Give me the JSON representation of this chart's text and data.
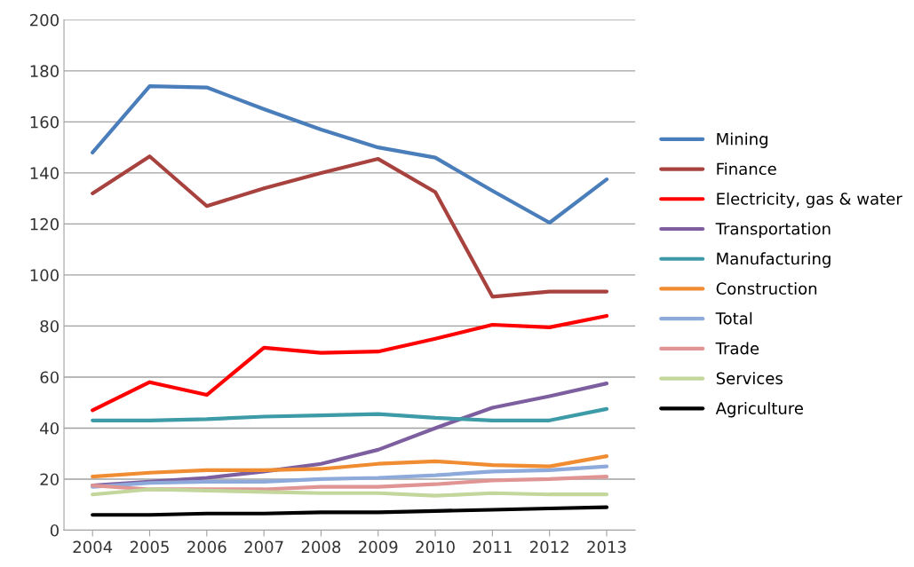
{
  "chart_data": {
    "type": "line",
    "categories": [
      "2004",
      "2005",
      "2006",
      "2007",
      "2008",
      "2009",
      "2010",
      "2011",
      "2012",
      "2013"
    ],
    "ylim": [
      0,
      200
    ],
    "yticks": [
      0,
      20,
      40,
      60,
      80,
      100,
      120,
      140,
      160,
      180,
      200
    ],
    "grid": "y",
    "legend": "right",
    "series": [
      {
        "name": "Mining",
        "color": "#4a7ebb",
        "values": [
          148,
          174,
          173.5,
          165,
          157,
          150,
          146,
          133,
          120.5,
          137.5
        ]
      },
      {
        "name": "Finance",
        "color": "#a8423f",
        "values": [
          132,
          146.5,
          127,
          134,
          140,
          145.5,
          132.5,
          91.5,
          93.5,
          93.5
        ]
      },
      {
        "name": "Electricity, gas & water",
        "color": "#ff0000",
        "values": [
          47,
          58,
          53,
          71.5,
          69.5,
          70,
          75,
          80.5,
          79.5,
          84
        ]
      },
      {
        "name": "Transportation",
        "color": "#7d5fa0",
        "values": [
          17.5,
          19,
          20.5,
          23,
          26,
          31.5,
          40,
          48,
          52.5,
          57.5
        ]
      },
      {
        "name": "Manufacturing",
        "color": "#3d9ba8",
        "values": [
          43,
          43,
          43.5,
          44.5,
          45,
          45.5,
          44,
          43,
          43,
          47.5
        ]
      },
      {
        "name": "Construction",
        "color": "#f08c32",
        "values": [
          21,
          22.5,
          23.5,
          23.5,
          24,
          26,
          27,
          25.5,
          25,
          29
        ]
      },
      {
        "name": "Total",
        "color": "#8eaadb",
        "values": [
          17,
          18.5,
          19,
          19,
          20,
          20.5,
          21.5,
          23,
          23.5,
          25
        ]
      },
      {
        "name": "Trade",
        "color": "#e19494",
        "values": [
          17.5,
          16,
          16,
          16,
          17,
          17,
          18,
          19.5,
          20,
          21
        ]
      },
      {
        "name": "Services",
        "color": "#c3d69b",
        "values": [
          14,
          16,
          15.5,
          15,
          14.5,
          14.5,
          13.5,
          14.5,
          14,
          14
        ]
      },
      {
        "name": "Agriculture",
        "color": "#000000",
        "values": [
          6,
          6,
          6.5,
          6.5,
          7,
          7,
          7.5,
          8,
          8.5,
          9
        ]
      }
    ]
  }
}
